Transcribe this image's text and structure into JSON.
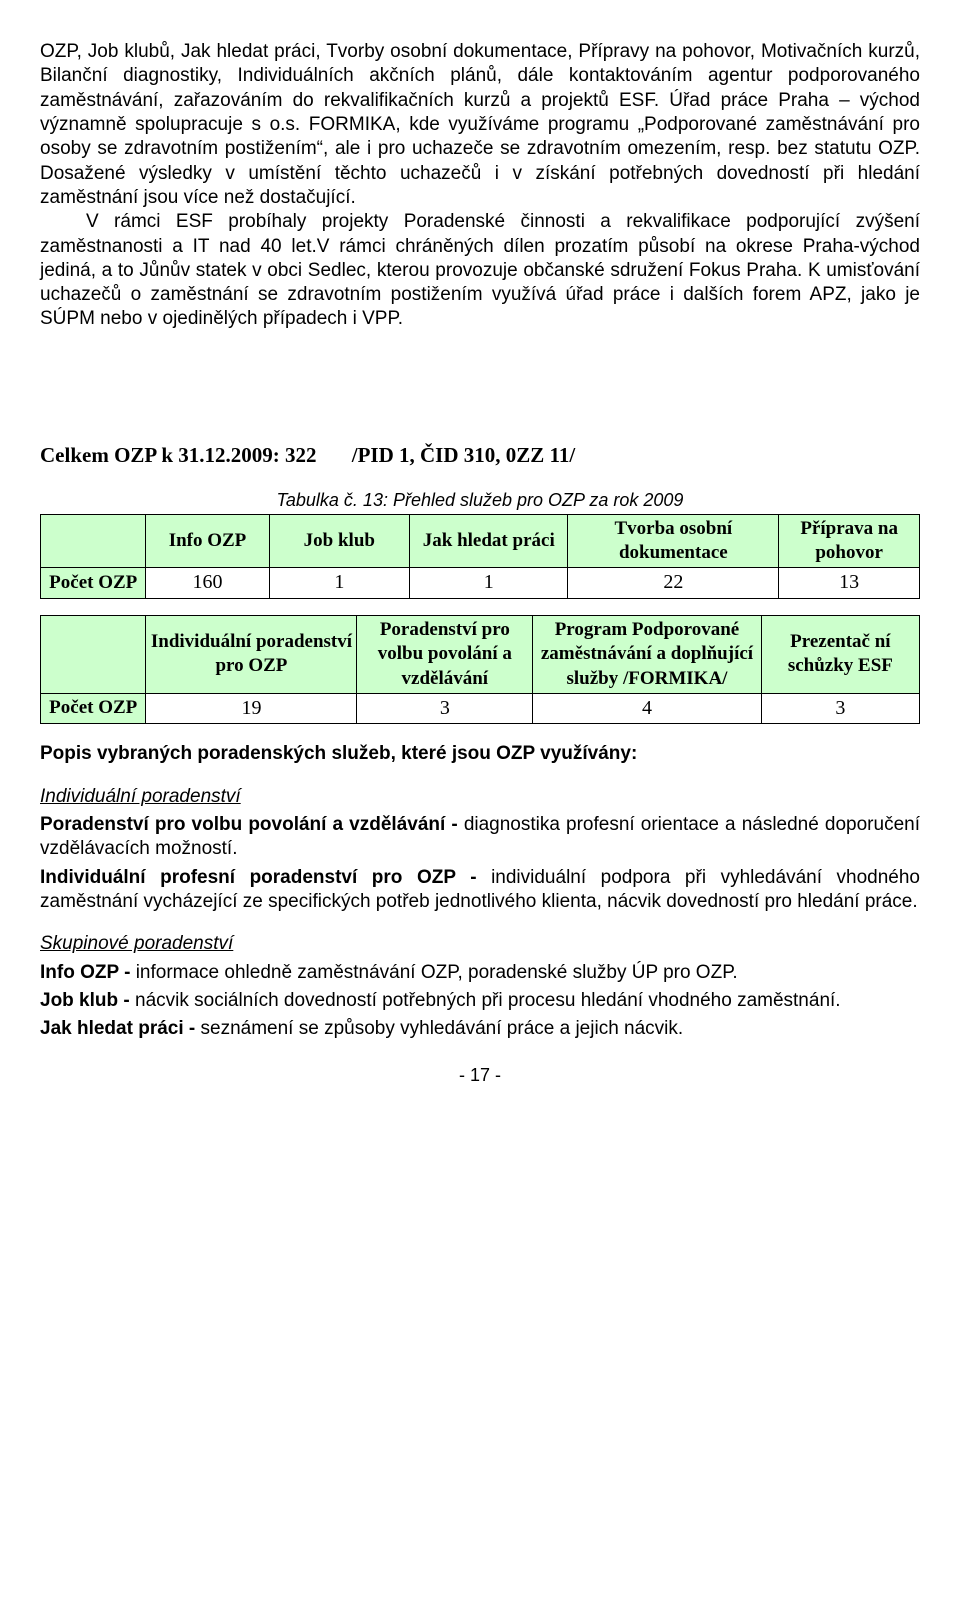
{
  "para1": "OZP, Job klubů, Jak hledat práci, Tvorby osobní dokumentace, Přípravy na pohovor, Motivačních kurzů, Bilanční diagnostiky, Individuálních akčních plánů, dále kontaktováním agentur podporovaného zaměstnávání, zařazováním do rekvalifikačních kurzů a projektů ESF. Úřad práce Praha – východ významně spolupracuje s o.s. FORMIKA, kde využíváme programu „Podporované zaměstnávání pro osoby se zdravotním postižením“, ale i pro uchazeče se zdravotním omezením, resp. bez statutu OZP. Dosažené výsledky v umístění těchto uchazečů i v získání potřebných dovedností při hledání zaměstnání jsou více než dostačující.",
  "para2": "V rámci ESF probíhaly projekty Poradenské činnosti a rekvalifikace podporující zvýšení zaměstnanosti a IT nad 40 let.V rámci chráněných dílen prozatím působí na okrese Praha-východ jediná, a to Jůnův statek v obci Sedlec, kterou provozuje občanské sdružení Fokus Praha. K umisťování uchazečů o zaměstnání se zdravotním postižením využívá úřad práce i dalších forem APZ, jako je SÚPM  nebo v ojedinělých případech i VPP.",
  "totals": {
    "prefix": "Celkem OZP k 31.12.2009: 322",
    "suffix": "/PID 1, ČID 310, 0ZZ 11/"
  },
  "caption": "Tabulka č. 13: Přehled služeb pro OZP za rok 2009",
  "t1": {
    "headers": [
      "",
      "Info OZP",
      "Job klub",
      "Jak hledat práci",
      "Tvorba osobní dokumentace",
      "Příprava na pohovor"
    ],
    "rowhead": "Počet OZP",
    "values": [
      "160",
      "1",
      "1",
      "22",
      "13"
    ]
  },
  "t2": {
    "headers": [
      "",
      "Individuální poradenství pro OZP",
      "Poradenství pro volbu povolání a vzdělávání",
      "Program Podporované zaměstnávání a doplňující služby /FORMIKA/",
      "Prezentač ní schůzky ESF"
    ],
    "rowhead": "Počet OZP",
    "values": [
      "19",
      "3",
      "4",
      "3"
    ]
  },
  "desc_title": "Popis vybraných poradenských služeb, které jsou OZP využívány:",
  "indiv": {
    "title": "Individuální poradenství",
    "l1b": "Poradenství pro volbu povolání a vzdělávání -",
    "l1t": " diagnostika profesní orientace a následné doporučení vzdělávacích možností.",
    "l2b": "Individuální profesní poradenství pro OZP -",
    "l2t": " individuální podpora při vyhledávání vhodného zaměstnání vycházející ze specifických potřeb jednotlivého klienta, nácvik dovedností pro hledání práce."
  },
  "group": {
    "title": "Skupinové poradenství",
    "l1b": "Info OZP -",
    "l1t": " informace ohledně zaměstnávání OZP, poradenské služby ÚP pro OZP.",
    "l2b": "Job klub -",
    "l2t": " nácvik sociálních dovedností potřebných při procesu hledání vhodného zaměstnání.",
    "l3b": "Jak hledat práci -",
    "l3t": " seznámení se způsoby vyhledávání práce a jejich nácvik."
  },
  "footer": "- 17 -",
  "colors": {
    "table_header_bg": "#ccffcc",
    "border": "#000000",
    "page_bg": "#ffffff",
    "text": "#000000"
  }
}
